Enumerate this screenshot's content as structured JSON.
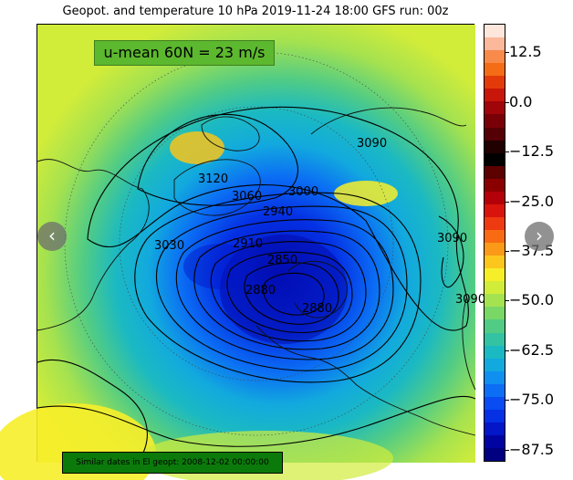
{
  "title": "Geopot. and temperature 10 hPa 2019-11-24 18:00 GFS run: 00z",
  "umean_label": "u-mean 60N = 23 m/s",
  "similar_dates_label": "Similar dates in El geopt: 2008-12-02 00:00:00",
  "colorbar": {
    "ticks": [
      "12.5",
      "0.0",
      "−12.5",
      "−25.0",
      "−37.5",
      "−50.0",
      "−62.5",
      "−75.0",
      "−87.5"
    ],
    "colors": [
      "#fde6dc",
      "#fbb89a",
      "#f88a4a",
      "#f46d16",
      "#e33a0a",
      "#c8160a",
      "#a0050a",
      "#7a0008",
      "#550005",
      "#200000",
      "#000000",
      "#5c0000",
      "#8a0000",
      "#b40008",
      "#d9140c",
      "#ee3a10",
      "#f86b12",
      "#fb9a18",
      "#fcc61c",
      "#f7ee2a",
      "#d2ec3a",
      "#a5e24f",
      "#79d766",
      "#52cc84",
      "#33c3a2",
      "#1bb9c2",
      "#12a9de",
      "#0f8ff0",
      "#0b6ef4",
      "#084cf2",
      "#0530e4",
      "#0316c8",
      "#0204a2",
      "#010080"
    ]
  },
  "contours": {
    "labels": [
      "3120",
      "3090",
      "3060",
      "3000",
      "2940",
      "2910",
      "3030",
      "2850",
      "2880",
      "2880",
      "3090",
      "3090"
    ]
  },
  "nav": {
    "prev_symbol": "‹",
    "next_symbol": "›"
  }
}
